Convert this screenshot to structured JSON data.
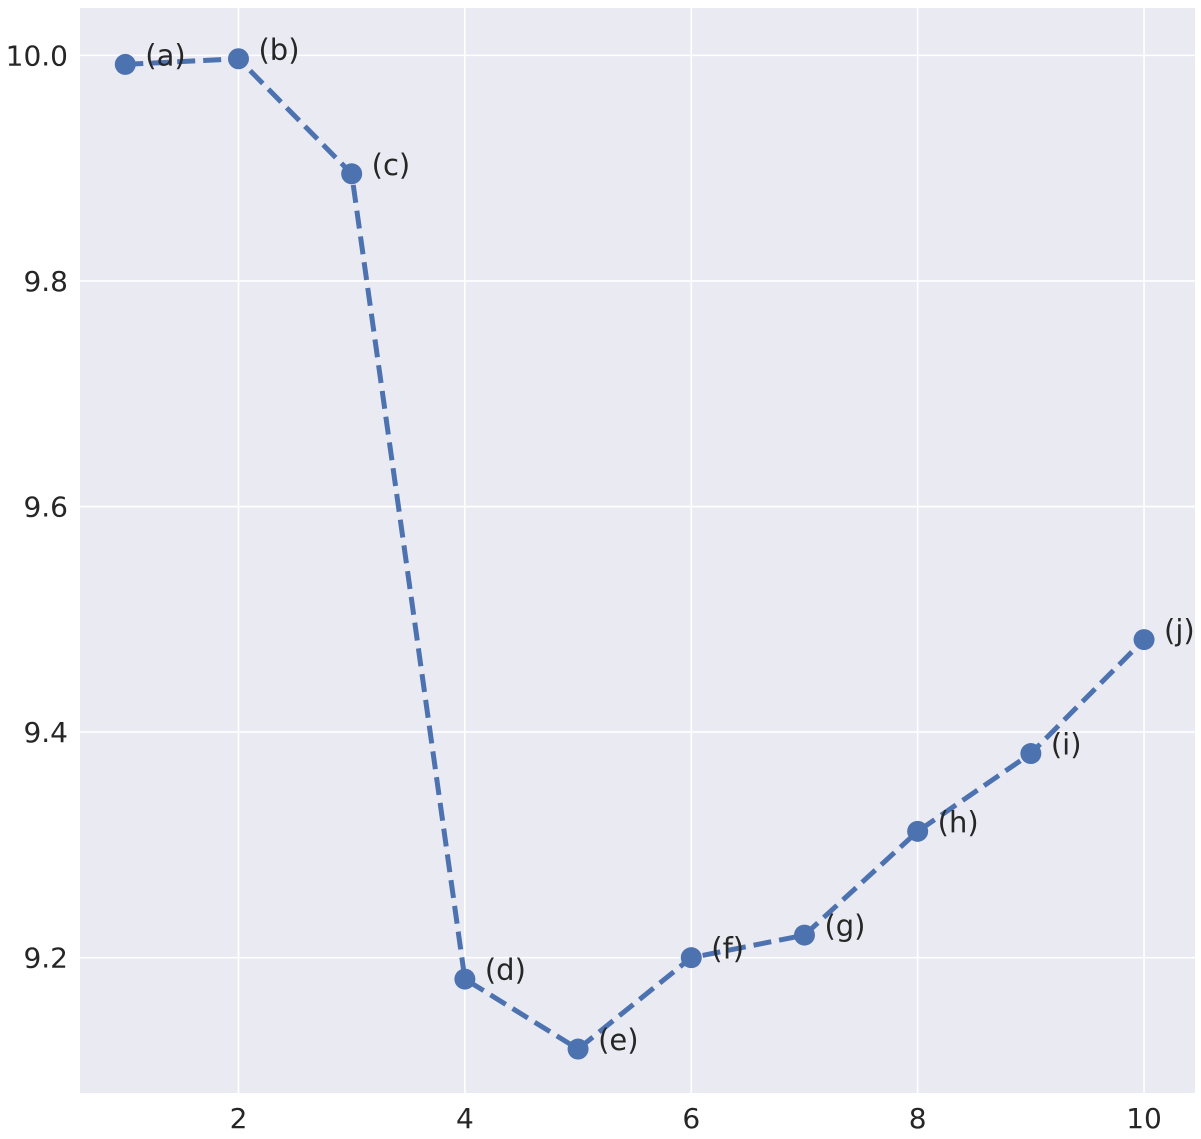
{
  "chart_data": {
    "type": "line",
    "title": "",
    "xlabel": "",
    "ylabel": "",
    "xlim": [
      0.6,
      10.45
    ],
    "ylim": [
      9.08,
      10.042
    ],
    "xticks": [
      2,
      4,
      6,
      8,
      10
    ],
    "yticks": [
      9.2,
      9.4,
      9.6,
      9.8,
      10.0
    ],
    "xtick_labels": [
      "2",
      "4",
      "6",
      "8",
      "10"
    ],
    "ytick_labels": [
      "9.2",
      "9.4",
      "9.6",
      "9.8",
      "10.0"
    ],
    "grid": true,
    "line_style": "dashed",
    "marker": "circle",
    "colors": {
      "background": "#eaeaf2",
      "grid": "#ffffff",
      "series": "#4c72b0",
      "text": "#262626"
    },
    "series": [
      {
        "x": [
          1,
          2,
          3,
          4,
          5,
          6,
          7,
          8,
          9,
          10
        ],
        "values": [
          9.992,
          9.997,
          9.895,
          9.181,
          9.119,
          9.2,
          9.22,
          9.312,
          9.381,
          9.482
        ],
        "point_labels": [
          "(a)",
          "(b)",
          "(c)",
          "(d)",
          "(e)",
          "(f)",
          "(g)",
          "(h)",
          "(i)",
          "(j)"
        ]
      }
    ]
  }
}
